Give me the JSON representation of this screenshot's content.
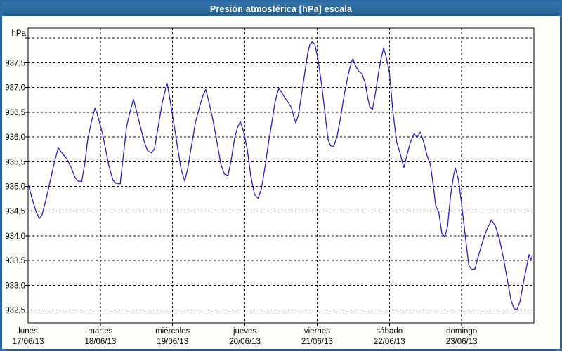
{
  "window": {
    "title": "Presión atmosférica [hPa] escala"
  },
  "colors": {
    "titlebar": "#2c69a2",
    "border": "#2c69a2",
    "title_text": "#ffffff",
    "background": "#fdfdfa",
    "plot_background": "#ffffff",
    "grid": "#000000",
    "text": "#000000",
    "curve": "#2323c0"
  },
  "chart_data": {
    "type": "line",
    "title": "Presión atmosférica [hPa] escala",
    "unit_label": "hPa",
    "ylim": [
      932.24,
      938.2
    ],
    "grid": "dashed",
    "legend": "none",
    "y_gridlines": [
      {
        "value": 938.0,
        "label": ""
      },
      {
        "value": 937.5,
        "label": "937,5"
      },
      {
        "value": 937.0,
        "label": "937,0"
      },
      {
        "value": 936.5,
        "label": "936,5"
      },
      {
        "value": 936.0,
        "label": "936,0"
      },
      {
        "value": 935.5,
        "label": "935,5"
      },
      {
        "value": 935.0,
        "label": "935,0"
      },
      {
        "value": 934.5,
        "label": "934,5"
      },
      {
        "value": 934.0,
        "label": "934,0"
      },
      {
        "value": 933.5,
        "label": "933,5"
      },
      {
        "value": 933.0,
        "label": "933,0"
      },
      {
        "value": 932.5,
        "label": "932,5"
      }
    ],
    "x_axis": {
      "range_hours": [
        0,
        168
      ],
      "day_width_hours": 24,
      "days": [
        {
          "name": "lunes",
          "date": "17/06/13"
        },
        {
          "name": "martes",
          "date": "18/06/13"
        },
        {
          "name": "miércoles",
          "date": "19/06/13"
        },
        {
          "name": "jueves",
          "date": "20/06/13"
        },
        {
          "name": "viernes",
          "date": "21/06/13"
        },
        {
          "name": "sábado",
          "date": "22/06/13"
        },
        {
          "name": "domingo",
          "date": "23/06/13"
        }
      ]
    },
    "series": [
      {
        "name": "presion_atmosferica_hpa",
        "color": "#2323c0",
        "points": [
          [
            0,
            935.05
          ],
          [
            1.5,
            934.72
          ],
          [
            2.6,
            934.5
          ],
          [
            3.7,
            934.35
          ],
          [
            4.6,
            934.42
          ],
          [
            6,
            934.75
          ],
          [
            7.5,
            935.15
          ],
          [
            8.8,
            935.5
          ],
          [
            10,
            935.78
          ],
          [
            11.2,
            935.68
          ],
          [
            12.8,
            935.56
          ],
          [
            14.3,
            935.38
          ],
          [
            15.6,
            935.18
          ],
          [
            16.6,
            935.11
          ],
          [
            17.8,
            935.1
          ],
          [
            18.8,
            935.45
          ],
          [
            19.8,
            935.95
          ],
          [
            21,
            936.3
          ],
          [
            22.2,
            936.58
          ],
          [
            22.8,
            936.5
          ],
          [
            23.6,
            936.32
          ],
          [
            24.6,
            936.1
          ],
          [
            25.6,
            935.8
          ],
          [
            26.8,
            935.42
          ],
          [
            28.2,
            935.12
          ],
          [
            29.3,
            935.06
          ],
          [
            30.6,
            935.05
          ],
          [
            31.6,
            935.6
          ],
          [
            32.7,
            936.2
          ],
          [
            33.8,
            936.5
          ],
          [
            35,
            936.76
          ],
          [
            36.2,
            936.48
          ],
          [
            37.3,
            936.2
          ],
          [
            38.6,
            935.9
          ],
          [
            39.7,
            935.72
          ],
          [
            40.9,
            935.68
          ],
          [
            42,
            935.76
          ],
          [
            43.2,
            936.2
          ],
          [
            44.6,
            936.7
          ],
          [
            45.7,
            936.98
          ],
          [
            46.2,
            937.08
          ],
          [
            47,
            936.8
          ],
          [
            48.2,
            936.35
          ],
          [
            49.5,
            935.85
          ],
          [
            50.8,
            935.35
          ],
          [
            52,
            935.11
          ],
          [
            53,
            935.35
          ],
          [
            54.2,
            935.8
          ],
          [
            55.6,
            936.3
          ],
          [
            57.2,
            936.66
          ],
          [
            58.1,
            936.84
          ],
          [
            59,
            936.96
          ],
          [
            60,
            936.72
          ],
          [
            61.2,
            936.4
          ],
          [
            62.6,
            935.95
          ],
          [
            64,
            935.45
          ],
          [
            65.2,
            935.25
          ],
          [
            66.4,
            935.22
          ],
          [
            67.5,
            935.55
          ],
          [
            68.6,
            935.98
          ],
          [
            69.6,
            936.2
          ],
          [
            70.5,
            936.31
          ],
          [
            71.6,
            936.1
          ],
          [
            72.8,
            935.75
          ],
          [
            74,
            935.2
          ],
          [
            75.2,
            934.84
          ],
          [
            76.4,
            934.76
          ],
          [
            77.5,
            934.95
          ],
          [
            78.7,
            935.4
          ],
          [
            79.9,
            935.9
          ],
          [
            81,
            936.3
          ],
          [
            81.9,
            936.66
          ],
          [
            82.6,
            936.85
          ],
          [
            83.3,
            936.98
          ],
          [
            84.2,
            936.9
          ],
          [
            85.4,
            936.78
          ],
          [
            86.6,
            936.68
          ],
          [
            87.4,
            936.6
          ],
          [
            88.3,
            936.4
          ],
          [
            88.9,
            936.28
          ],
          [
            89.8,
            936.45
          ],
          [
            90.8,
            936.85
          ],
          [
            91.9,
            937.3
          ],
          [
            92.9,
            937.7
          ],
          [
            93.6,
            937.87
          ],
          [
            94.3,
            937.92
          ],
          [
            95.2,
            937.88
          ],
          [
            96.2,
            937.6
          ],
          [
            97.4,
            937.1
          ],
          [
            98.5,
            936.55
          ],
          [
            99.6,
            935.95
          ],
          [
            100.5,
            935.82
          ],
          [
            101.5,
            935.81
          ],
          [
            102.6,
            936.0
          ],
          [
            103.8,
            936.4
          ],
          [
            105,
            936.85
          ],
          [
            106.3,
            937.25
          ],
          [
            107.3,
            937.5
          ],
          [
            107.9,
            937.58
          ],
          [
            108.9,
            937.42
          ],
          [
            109.9,
            937.32
          ],
          [
            110.9,
            937.28
          ],
          [
            111.9,
            937.1
          ],
          [
            112.8,
            936.8
          ],
          [
            113.5,
            936.6
          ],
          [
            114.4,
            936.56
          ],
          [
            115.4,
            936.9
          ],
          [
            116.4,
            937.3
          ],
          [
            117.3,
            937.6
          ],
          [
            118.1,
            937.8
          ],
          [
            119,
            937.6
          ],
          [
            120,
            937.3
          ],
          [
            121.2,
            936.5
          ],
          [
            122.4,
            935.9
          ],
          [
            123.5,
            935.68
          ],
          [
            124.8,
            935.38
          ],
          [
            125.8,
            935.62
          ],
          [
            126.9,
            935.88
          ],
          [
            128.2,
            936.07
          ],
          [
            129.2,
            935.99
          ],
          [
            130.3,
            936.1
          ],
          [
            131.4,
            935.9
          ],
          [
            132.6,
            935.6
          ],
          [
            133.6,
            935.45
          ],
          [
            134.5,
            935.05
          ],
          [
            135.4,
            934.6
          ],
          [
            136.4,
            934.48
          ],
          [
            137.4,
            934.05
          ],
          [
            138.4,
            933.98
          ],
          [
            139.3,
            934.18
          ],
          [
            140.3,
            934.8
          ],
          [
            141.3,
            935.22
          ],
          [
            141.9,
            935.37
          ],
          [
            142.9,
            935.15
          ],
          [
            144,
            934.65
          ],
          [
            145.2,
            934.0
          ],
          [
            146.4,
            933.4
          ],
          [
            147.3,
            933.32
          ],
          [
            148.4,
            933.33
          ],
          [
            149.5,
            933.58
          ],
          [
            150.8,
            933.85
          ],
          [
            152.3,
            934.12
          ],
          [
            153.9,
            934.32
          ],
          [
            155.2,
            934.2
          ],
          [
            156.5,
            933.95
          ],
          [
            157.9,
            933.55
          ],
          [
            159.2,
            933.1
          ],
          [
            160.4,
            932.7
          ],
          [
            161.4,
            932.53
          ],
          [
            162.4,
            932.51
          ],
          [
            163.4,
            932.68
          ],
          [
            164.5,
            933.05
          ],
          [
            165.6,
            933.38
          ],
          [
            166.4,
            933.62
          ],
          [
            167,
            933.52
          ],
          [
            167.5,
            933.6
          ]
        ]
      }
    ]
  }
}
